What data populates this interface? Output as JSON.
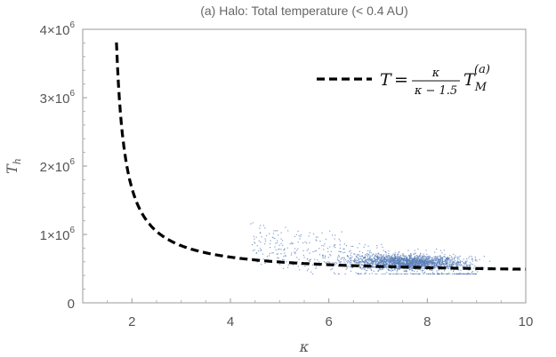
{
  "chart_data": {
    "type": "scatter",
    "title": "(a) Halo: Total temperature (< 0.4 AU)",
    "xlabel": "κ",
    "ylabel_base": "T",
    "ylabel_sub": "h",
    "xlim": [
      1,
      10
    ],
    "ylim": [
      0,
      4000000
    ],
    "x_ticks": [
      2,
      4,
      6,
      8,
      10
    ],
    "y_ticks": [
      {
        "value": 0,
        "label": "0",
        "exp": ""
      },
      {
        "value": 1000000,
        "label": "1×10",
        "exp": "6"
      },
      {
        "value": 2000000,
        "label": "2×10",
        "exp": "6"
      },
      {
        "value": 3000000,
        "label": "3×10",
        "exp": "6"
      },
      {
        "value": 4000000,
        "label": "4×10",
        "exp": "6"
      }
    ],
    "grid": false,
    "legend_position": "top-right",
    "colors": {
      "scatter": "#5b7fb8",
      "curve": "#000000",
      "frame": "#9a9a9a",
      "text": "#555555"
    },
    "series": [
      {
        "kind": "curve",
        "style": "dashed",
        "formula": "T = κ/(κ−1.5) · T_M^(a)",
        "T_M": 418000,
        "kappa_offset": 1.5,
        "x_range": [
          1.5,
          10
        ]
      },
      {
        "kind": "scatter",
        "x_range": [
          4.3,
          9.3
        ],
        "y_range": [
          430000,
          1270000
        ],
        "density_peak": {
          "x": 7.6,
          "y": 600000
        }
      }
    ],
    "legend": {
      "lhs": "T",
      "eq": "=",
      "numerator": "κ",
      "denominator": "κ − 1.5",
      "rhs_base": "T",
      "rhs_sub": "M",
      "rhs_sup": "(a)"
    }
  }
}
